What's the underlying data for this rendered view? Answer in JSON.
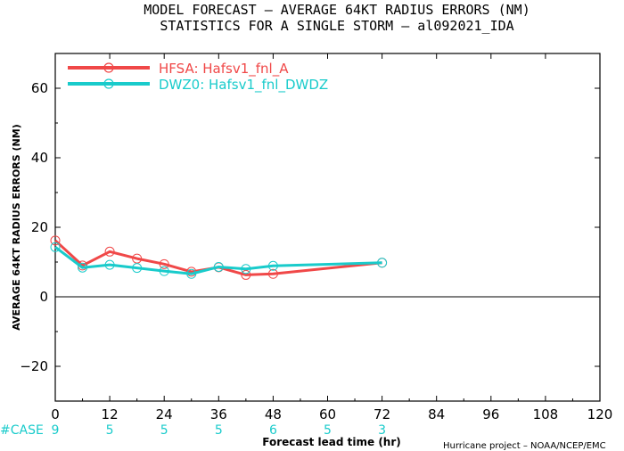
{
  "chart_data": {
    "type": "line",
    "title_line1": "MODEL FORECAST – AVERAGE 64KT RADIUS ERRORS (NM)",
    "title_line2": "STATISTICS FOR A SINGLE STORM – al092021_IDA",
    "xlabel": "Forecast lead time (hr)",
    "ylabel": "AVERAGE 64KT RADIUS ERRORS (NM)",
    "xlim": [
      0,
      120
    ],
    "ylim": [
      -30,
      70
    ],
    "x_ticks": [
      0,
      12,
      24,
      36,
      48,
      60,
      72,
      84,
      96,
      108,
      120
    ],
    "y_ticks": [
      -20,
      0,
      20,
      40,
      60
    ],
    "zero_line": true,
    "legend_position": "top-left",
    "series": [
      {
        "name": "HFSA: Hafsv1_fnl_A",
        "color": "#f04848",
        "x": [
          0,
          6,
          12,
          18,
          24,
          30,
          36,
          42,
          48,
          72
        ],
        "y": [
          16.2,
          9.0,
          13.0,
          11.0,
          9.4,
          7.2,
          8.5,
          6.3,
          6.6,
          9.8
        ]
      },
      {
        "name": "DWZ0: Hafsv1_fnl_DWDZ",
        "color": "#19cbcb",
        "x": [
          0,
          6,
          12,
          18,
          24,
          30,
          36,
          42,
          48,
          72
        ],
        "y": [
          14.3,
          8.4,
          9.2,
          8.3,
          7.4,
          6.6,
          8.6,
          8.0,
          8.9,
          9.8
        ]
      }
    ],
    "cases": {
      "label": "#CASE",
      "x": [
        0,
        12,
        24,
        36,
        48,
        60,
        72
      ],
      "values": [
        "9",
        "5",
        "5",
        "5",
        "6",
        "5",
        "3"
      ]
    },
    "credit": "Hurricane project – NOAA/NCEP/EMC"
  }
}
